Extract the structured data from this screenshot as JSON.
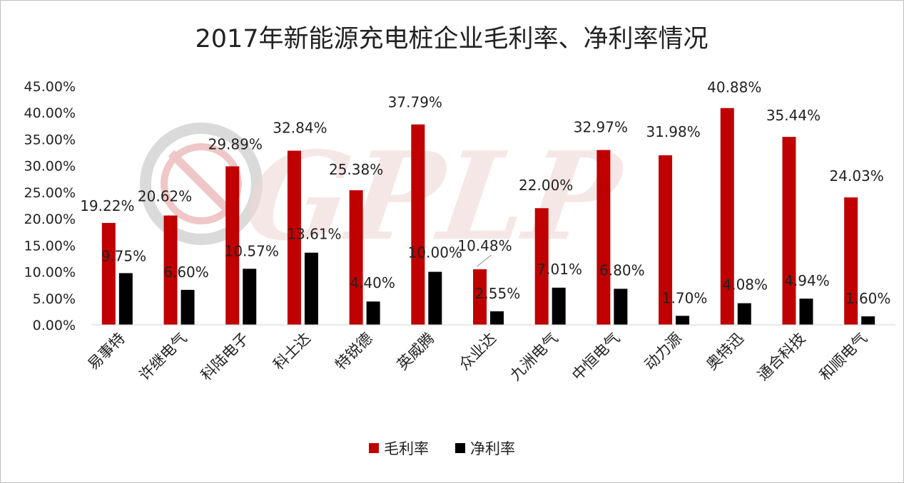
{
  "chart_data": {
    "type": "bar",
    "title": "2017年新能源充电桩企业毛利率、净利率情况",
    "categories": [
      "易事特",
      "许继电气",
      "科陆电子",
      "科士达",
      "特锐德",
      "英威腾",
      "众业达",
      "九洲电气",
      "中恒电气",
      "动力源",
      "奥特迅",
      "通合科技",
      "和顺电气"
    ],
    "series": [
      {
        "name": "毛利率",
        "color": "#c00000",
        "values": [
          19.22,
          20.62,
          29.89,
          32.84,
          25.38,
          37.79,
          10.48,
          22.0,
          32.97,
          31.98,
          40.88,
          35.44,
          24.03
        ],
        "labels": [
          "19.22%",
          "20.62%",
          "29.89%",
          "32.84%",
          "25.38%",
          "37.79%",
          "10.48%",
          "22.00%",
          "32.97%",
          "31.98%",
          "40.88%",
          "35.44%",
          "24.03%"
        ]
      },
      {
        "name": "净利率",
        "color": "#000000",
        "values": [
          9.75,
          6.6,
          10.57,
          13.61,
          4.4,
          10.0,
          2.55,
          7.01,
          6.8,
          1.7,
          4.08,
          4.94,
          1.6
        ],
        "labels": [
          "9.75%",
          "6.60%",
          "10.57%",
          "13.61%",
          "4.40%",
          "10.00%",
          "2.55%",
          "7.01%",
          "6.80%",
          "1.70%",
          "4.08%",
          "4.94%",
          "1.60%"
        ]
      }
    ],
    "yticks": [
      "0.00%",
      "5.00%",
      "10.00%",
      "15.00%",
      "20.00%",
      "25.00%",
      "30.00%",
      "35.00%",
      "40.00%",
      "45.00%"
    ],
    "ylim": [
      0,
      45
    ],
    "ylabel": "",
    "xlabel": "",
    "grid": false,
    "legend": "bottom"
  },
  "watermark": {
    "text": "GPLP",
    "color": "#e2b8b8"
  }
}
